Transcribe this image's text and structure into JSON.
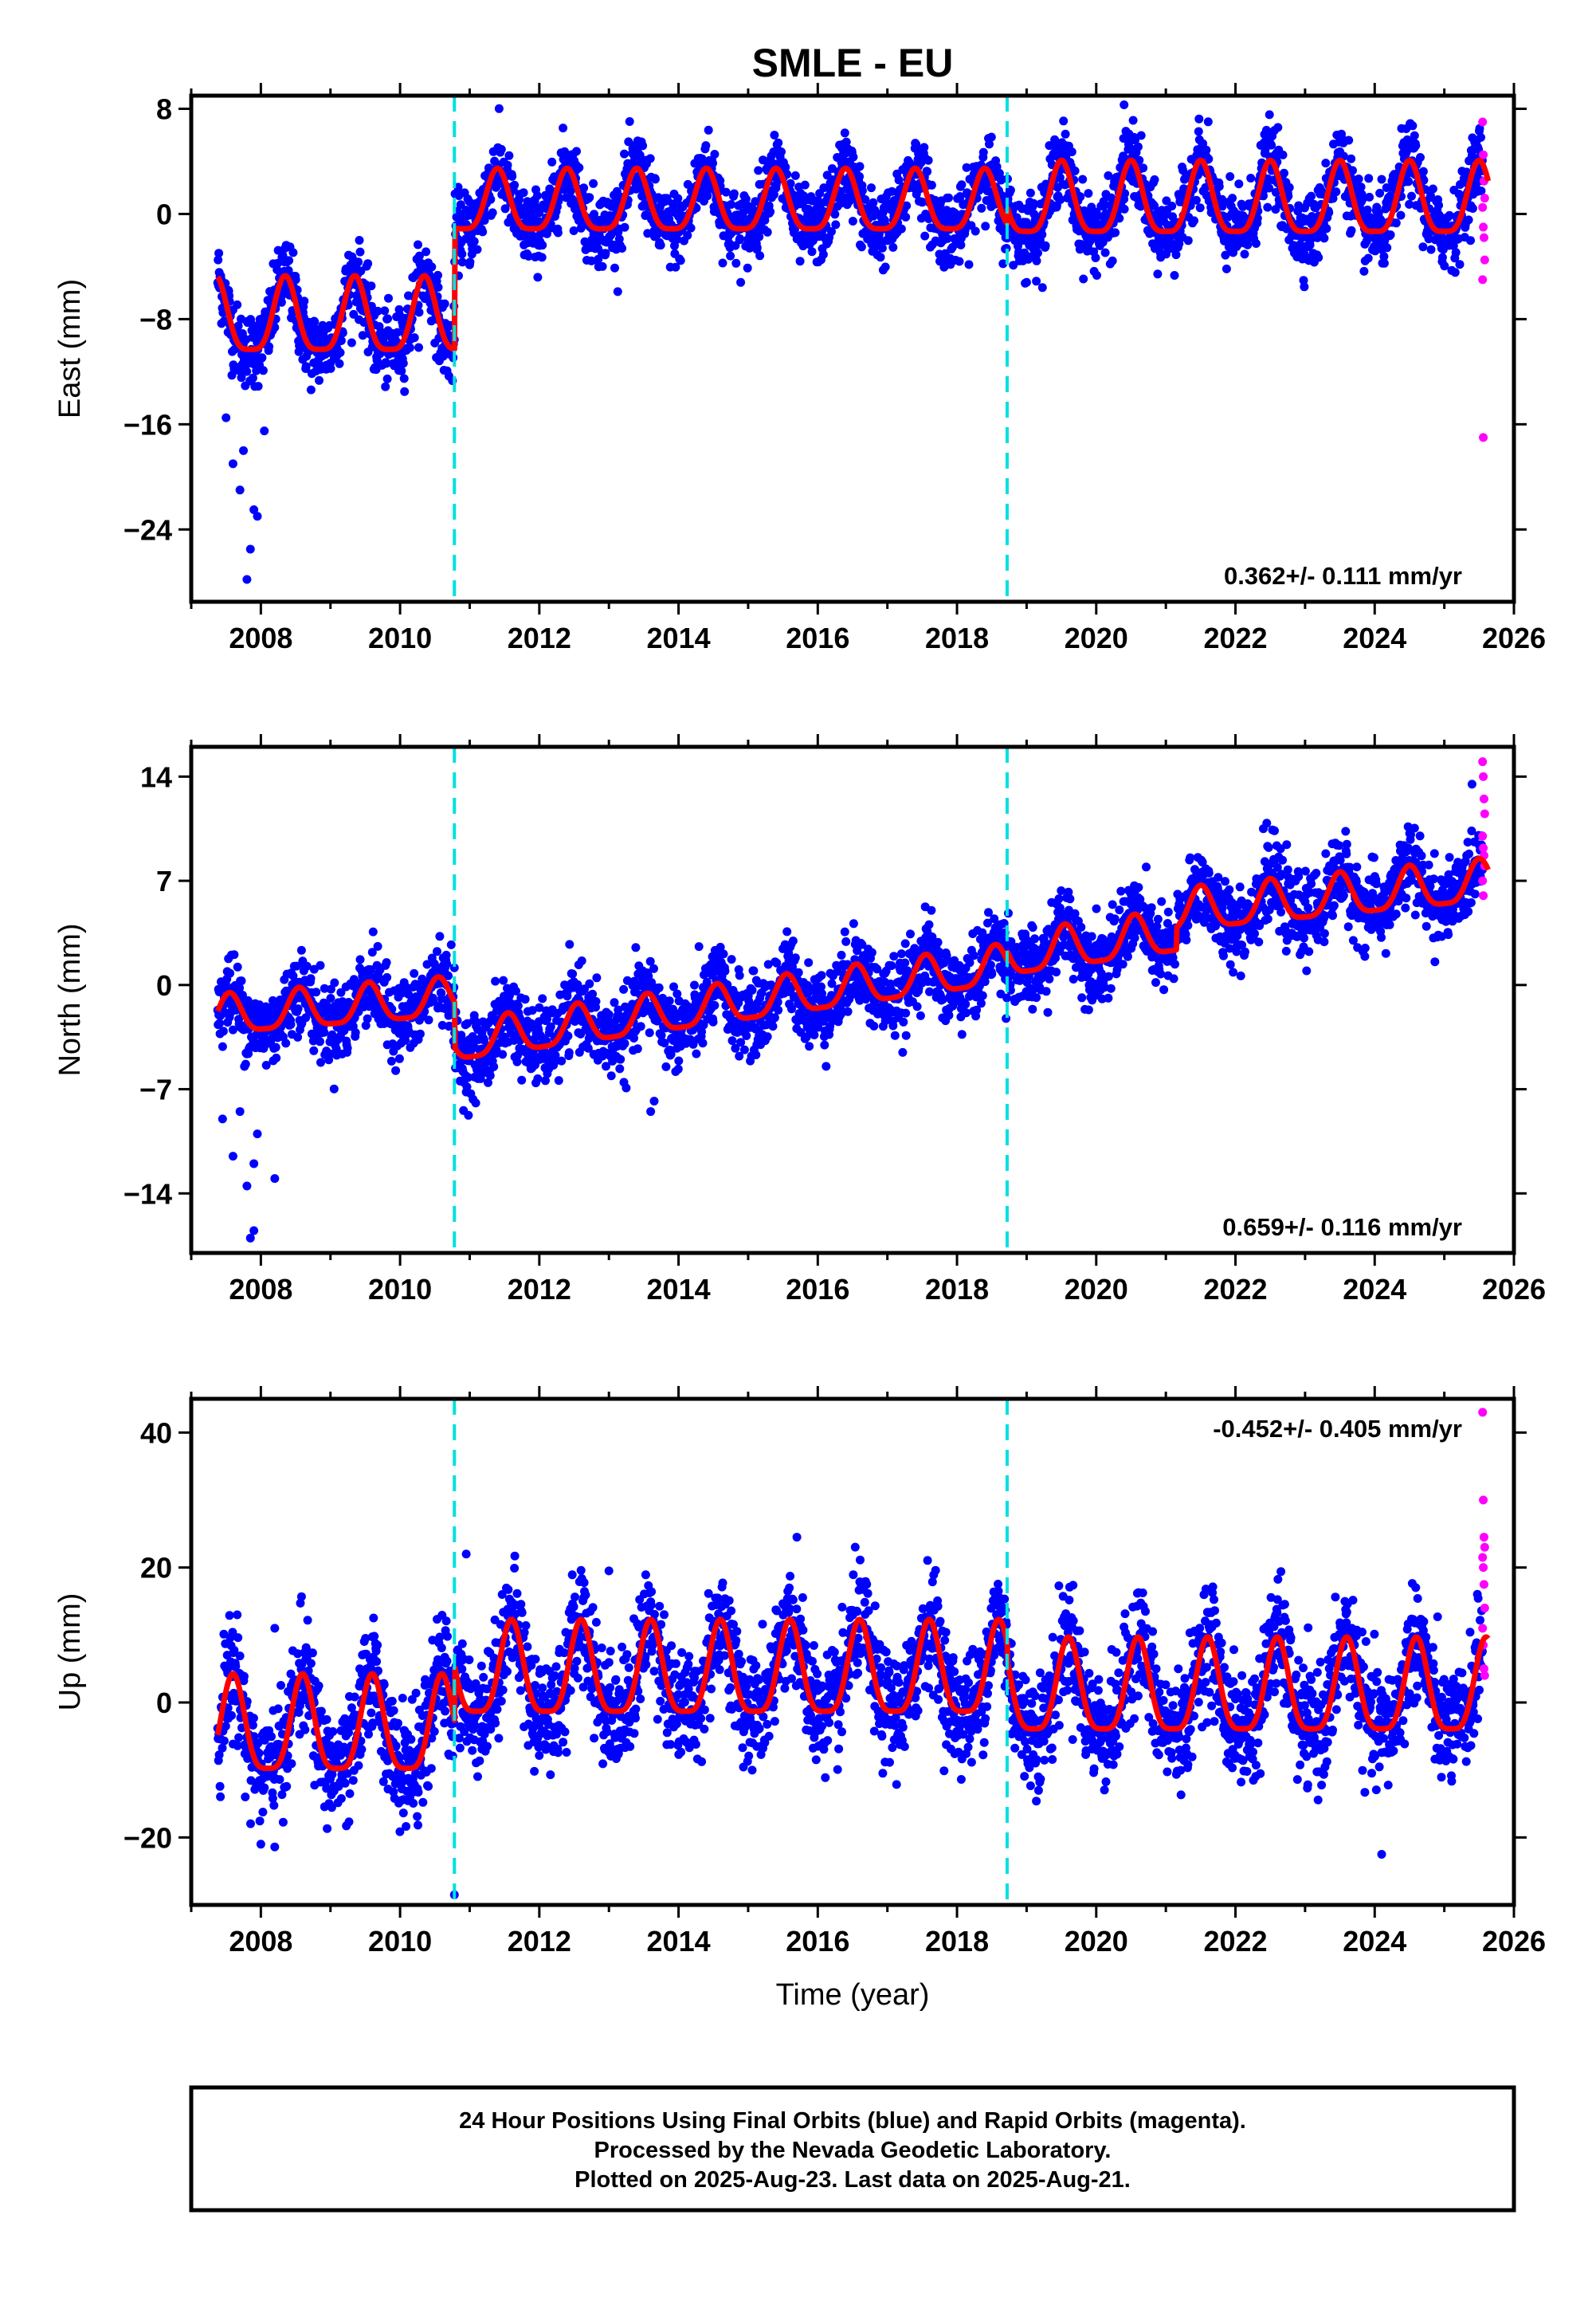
{
  "title": "SMLE - EU",
  "xlabel": "Time (year)",
  "caption": [
    "24 Hour Positions Using Final Orbits (blue) and Rapid Orbits (magenta).",
    "Processed by the Nevada Geodetic Laboratory.",
    "Plotted on 2025-Aug-23. Last data on 2025-Aug-21."
  ],
  "colors": {
    "final": "#0000ff",
    "rapid": "#ff00ff",
    "model": "#ff0000",
    "steps": "#00e0e0"
  },
  "chart_data": [
    {
      "type": "scatter",
      "component": "East",
      "ylabel": "East (mm)",
      "rate_text": "0.362+/- 0.111 mm/yr",
      "rate_position": "bottom-right",
      "xlim": [
        2007.0,
        2026.0
      ],
      "ylim": [
        -29.5,
        9.0
      ],
      "xticks": [
        2008,
        2010,
        2012,
        2014,
        2016,
        2018,
        2020,
        2022,
        2024,
        2026
      ],
      "yticks": [
        8,
        0,
        -8,
        -16,
        -24
      ],
      "step_lines_x": [
        2010.78,
        2018.72
      ],
      "data_start": 2007.38,
      "data_end": 2025.63,
      "rapid_start": 2025.55,
      "seasonal_model": {
        "segments": [
          {
            "from": 2007.38,
            "to": 2010.78,
            "mean_mm": -8.2,
            "annual_amplitude_mm": 2.8,
            "annual_peak_year": 2009.35
          },
          {
            "from": 2010.78,
            "to": 2018.72,
            "mean_mm": 0.6,
            "annual_amplitude_mm": 2.3,
            "annual_peak_year": 2016.4
          },
          {
            "from": 2018.72,
            "to": 2025.63,
            "mean_mm": 0.7,
            "annual_amplitude_mm": 2.7,
            "annual_peak_year": 2024.5
          }
        ]
      },
      "scatter_noise_mm": 1.4,
      "outliers": [
        {
          "x": 2007.8,
          "y": -27.8
        },
        {
          "x": 2007.85,
          "y": -25.5
        },
        {
          "x": 2007.9,
          "y": -22.5
        },
        {
          "x": 2007.6,
          "y": -19.0
        },
        {
          "x": 2007.75,
          "y": -18.0
        },
        {
          "x": 2008.05,
          "y": -16.5
        },
        {
          "x": 2007.95,
          "y": -23.0
        },
        {
          "x": 2007.7,
          "y": -21.0
        },
        {
          "x": 2007.5,
          "y": -15.5
        },
        {
          "x": 2020.4,
          "y": 8.3
        },
        {
          "x": 2019.0,
          "y": -5.2
        }
      ],
      "rapid_points": [
        7,
        4.5,
        2.5,
        1.2,
        0.5,
        -1.0,
        -1.8,
        -3.5,
        -5.0,
        -17.0
      ]
    },
    {
      "type": "scatter",
      "component": "North",
      "ylabel": "North (mm)",
      "rate_text": "0.659+/- 0.116 mm/yr",
      "rate_position": "bottom-right",
      "xlim": [
        2007.0,
        2026.0
      ],
      "ylim": [
        -18.0,
        16.0
      ],
      "xticks": [
        2008,
        2010,
        2012,
        2014,
        2016,
        2018,
        2020,
        2022,
        2024,
        2026
      ],
      "yticks": [
        14,
        7,
        0,
        -7,
        -14
      ],
      "step_lines_x": [
        2010.78,
        2018.72
      ],
      "data_start": 2007.38,
      "data_end": 2025.63,
      "rapid_start": 2025.55,
      "seasonal_model": {
        "segments": [
          {
            "from": 2007.38,
            "to": 2010.78,
            "start_mm": -2.2,
            "end_mm": -1.0,
            "annual_amplitude_mm": 1.3,
            "annual_peak_year": 2010.55
          },
          {
            "from": 2010.78,
            "to": 2018.72,
            "start_mm": -4.0,
            "end_mm": 1.2,
            "annual_amplitude_mm": 1.3,
            "annual_peak_year": 2016.55
          },
          {
            "from": 2018.72,
            "to": 2021.15,
            "start_mm": 1.8,
            "end_mm": 3.4,
            "annual_amplitude_mm": 1.4,
            "annual_peak_year": 2020.55
          },
          {
            "from": 2021.15,
            "to": 2025.63,
            "start_mm": 4.8,
            "end_mm": 6.8,
            "annual_amplitude_mm": 1.4,
            "annual_peak_year": 2024.5
          }
        ]
      },
      "scatter_noise_mm": 1.3,
      "outliers": [
        {
          "x": 2007.6,
          "y": -11.5
        },
        {
          "x": 2007.8,
          "y": -13.5
        },
        {
          "x": 2007.9,
          "y": -12.0
        },
        {
          "x": 2008.2,
          "y": -13.0
        },
        {
          "x": 2007.85,
          "y": -17.0
        },
        {
          "x": 2007.9,
          "y": -16.5
        },
        {
          "x": 2007.45,
          "y": -9.0
        },
        {
          "x": 2007.7,
          "y": -8.5
        },
        {
          "x": 2007.95,
          "y": -10.0
        },
        {
          "x": 2013.6,
          "y": -8.5
        },
        {
          "x": 2013.65,
          "y": -7.8
        },
        {
          "x": 2022.4,
          "y": 10.5
        }
      ],
      "rapid_points": [
        15,
        14,
        12.5,
        11.5,
        10,
        9.2,
        8.7,
        8,
        7,
        6
      ]
    },
    {
      "type": "scatter",
      "component": "Up",
      "ylabel": "Up (mm)",
      "rate_text": "-0.452+/- 0.405 mm/yr",
      "rate_position": "top-right",
      "xlim": [
        2007.0,
        2026.0
      ],
      "ylim": [
        -30.0,
        45.0
      ],
      "xticks": [
        2008,
        2010,
        2012,
        2014,
        2016,
        2018,
        2020,
        2022,
        2024,
        2026
      ],
      "yticks": [
        40,
        20,
        0,
        -20
      ],
      "step_lines_x": [
        2010.78,
        2018.72
      ],
      "data_start": 2007.38,
      "data_end": 2025.63,
      "rapid_start": 2025.55,
      "seasonal_model": {
        "segments": [
          {
            "from": 2007.38,
            "to": 2010.78,
            "mean_mm": -4.5,
            "annual_amplitude_mm": 7.0,
            "annual_peak_year": 2009.6
          },
          {
            "from": 2010.78,
            "to": 2018.72,
            "mean_mm": 3.8,
            "annual_amplitude_mm": 6.8,
            "annual_peak_year": 2016.6
          },
          {
            "from": 2018.72,
            "to": 2025.63,
            "mean_mm": 1.2,
            "annual_amplitude_mm": 6.8,
            "annual_peak_year": 2024.6
          }
        ]
      },
      "scatter_noise_mm": 4.2,
      "outliers": [
        {
          "x": 2010.78,
          "y": -28.5
        },
        {
          "x": 2010.95,
          "y": 22.0
        },
        {
          "x": 2015.7,
          "y": 24.5
        },
        {
          "x": 2024.1,
          "y": -22.5
        },
        {
          "x": 2008.0,
          "y": -21.0
        },
        {
          "x": 2008.2,
          "y": 11.0
        },
        {
          "x": 2013.0,
          "y": 19.5
        }
      ],
      "rapid_points": [
        43,
        30,
        24.5,
        23,
        21.5,
        20,
        17.5,
        14,
        11,
        8.5,
        5,
        4
      ]
    }
  ]
}
